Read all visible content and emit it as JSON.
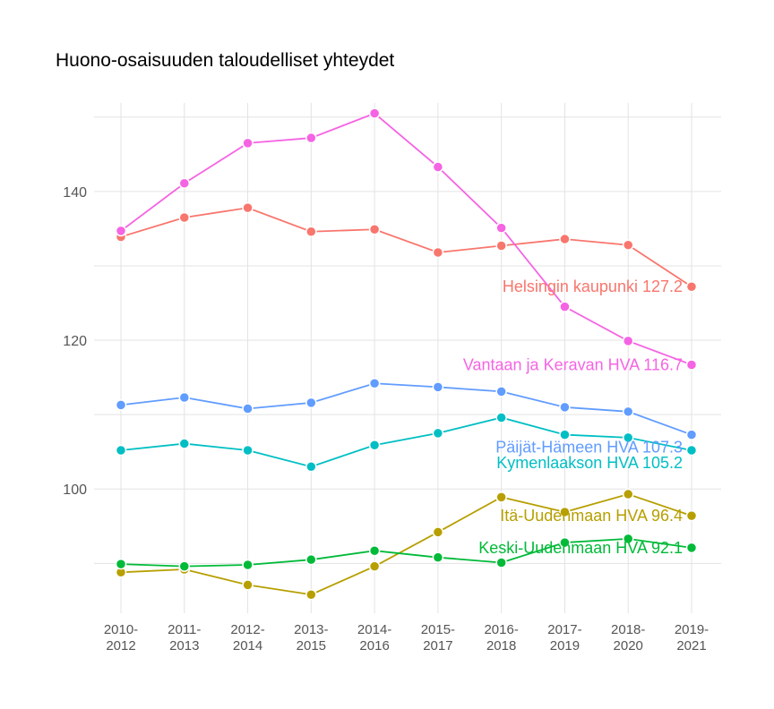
{
  "chart_data": {
    "type": "line",
    "title": "Huono-osaisuuden taloudelliset yhteydet",
    "xlabel": "",
    "ylabel": "",
    "categories": [
      "2010-\n2012",
      "2011-\n2013",
      "2012-\n2014",
      "2013-\n2015",
      "2014-\n2016",
      "2015-\n2017",
      "2016-\n2018",
      "2017-\n2019",
      "2018-\n2020",
      "2019-\n2021"
    ],
    "yticks": [
      100,
      120,
      140
    ],
    "ylim": [
      83.3,
      151.9
    ],
    "grid": true,
    "legend": "none (direct labels at line ends)",
    "series": [
      {
        "name": "Helsingin kaupunki",
        "label": "Helsingin kaupunki 127.2",
        "color": "#F8766D",
        "values": [
          133.9,
          136.5,
          137.8,
          134.6,
          134.9,
          131.8,
          132.7,
          133.6,
          132.8,
          127.2
        ]
      },
      {
        "name": "Vantaan ja Keravan HVA",
        "label": "Vantaan ja Keravan HVA 116.7",
        "color": "#F564E3",
        "values": [
          134.7,
          141.1,
          146.5,
          147.2,
          150.5,
          143.3,
          135.1,
          124.5,
          119.9,
          116.7
        ]
      },
      {
        "name": "Päijät-Hämeen HVA",
        "label": "Päijät-Hämeen HVA 107.3",
        "color": "#619CFF",
        "values": [
          111.3,
          112.3,
          110.8,
          111.6,
          114.2,
          113.7,
          113.1,
          111.0,
          110.4,
          107.3
        ]
      },
      {
        "name": "Kymenlaakson HVA",
        "label": "Kymenlaakson HVA 105.2",
        "color": "#00BFC4",
        "values": [
          105.2,
          106.1,
          105.2,
          103.0,
          105.9,
          107.5,
          109.6,
          107.3,
          106.9,
          105.2
        ]
      },
      {
        "name": "Itä-Uudenmaan HVA",
        "label": "Itä-Uudenmaan HVA 96.4",
        "color": "#B79F00",
        "values": [
          88.8,
          89.2,
          87.1,
          85.8,
          89.6,
          94.2,
          98.9,
          96.9,
          99.3,
          96.4
        ]
      },
      {
        "name": "Keski-Uudenmaan HVA",
        "label": "Keski-Uudenmaan HVA 92.1",
        "color": "#00BA38",
        "values": [
          89.9,
          89.6,
          89.8,
          90.5,
          91.7,
          90.8,
          90.1,
          92.8,
          93.3,
          92.1
        ]
      }
    ]
  }
}
